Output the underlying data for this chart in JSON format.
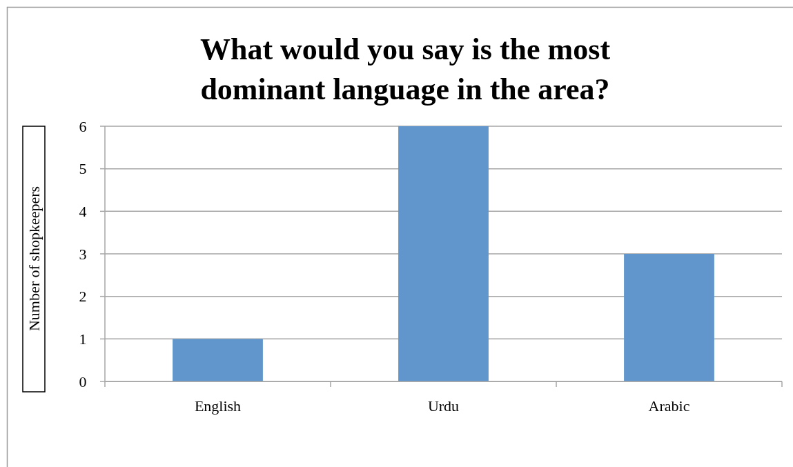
{
  "chart_data": {
    "type": "bar",
    "title": "What would you say is the most dominant language in the area?",
    "ylabel": "Number of shopkeepers",
    "categories": [
      "English",
      "Urdu",
      "Arabic"
    ],
    "values": [
      1,
      6,
      3
    ],
    "color": "#6096cb",
    "ylim": [
      0,
      6
    ],
    "yticks": [
      0,
      1,
      2,
      3,
      4,
      5,
      6
    ],
    "grid": "y"
  }
}
